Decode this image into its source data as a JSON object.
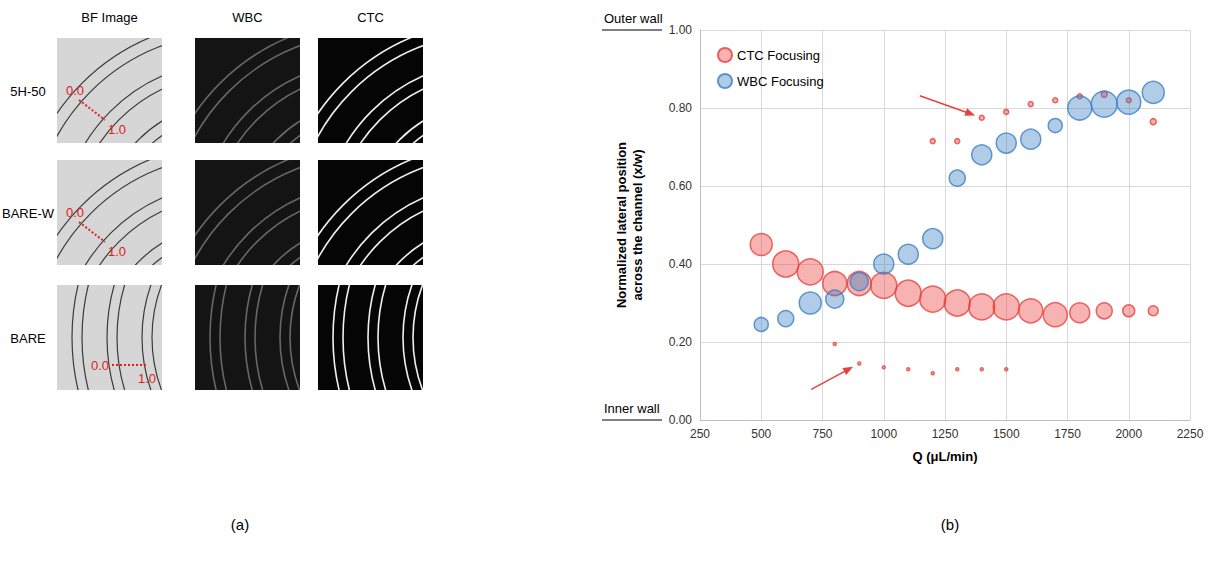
{
  "panel_a": {
    "label": "(a)",
    "columns": [
      "BF Image",
      "WBC",
      "CTC"
    ],
    "rows": [
      {
        "name": "5H-50",
        "scale_labels": [
          "0.0",
          "1.0"
        ]
      },
      {
        "name": "BARE-W",
        "scale_labels": [
          "0.0",
          "1.0"
        ]
      },
      {
        "name": "BARE",
        "scale_labels": [
          "0.0",
          "1.0"
        ]
      }
    ]
  },
  "chart_data": {
    "type": "scatter",
    "label": "(b)",
    "x_label": "Q (μL/min)",
    "y_label": "Normalized lateral position across the channel (x/w)",
    "annotations": [
      "Outer wall",
      "Inner wall"
    ],
    "xlim": [
      250,
      2250
    ],
    "xticks": [
      250,
      500,
      750,
      1000,
      1250,
      1500,
      1750,
      2000,
      2250
    ],
    "ylim": [
      0,
      1
    ],
    "yticks": [
      {
        "value": 0,
        "label": "0.00"
      },
      {
        "value": 0.2,
        "label": "0.20"
      },
      {
        "value": 0.4,
        "label": "0.40"
      },
      {
        "value": 0.6,
        "label": "0.60"
      },
      {
        "value": 0.8,
        "label": "0.80"
      },
      {
        "value": 1,
        "label": "1.00"
      }
    ],
    "grid": true,
    "legend": "upper left",
    "marker": "circle",
    "series": [
      {
        "name": "CTC Focusing",
        "color": "#e8413f",
        "x": [
          500,
          600,
          700,
          800,
          900,
          1000,
          1100,
          1200,
          1300,
          1400,
          1500,
          1600,
          1700,
          1800,
          1900,
          2000,
          2100,
          1200,
          1300,
          1400,
          1500,
          1600,
          1700,
          1800,
          1900,
          2000,
          2100,
          800,
          900,
          1000,
          1100,
          1200,
          1300,
          1400,
          1500
        ],
        "values": [
          0.45,
          0.4,
          0.38,
          0.35,
          0.35,
          0.345,
          0.325,
          0.31,
          0.3,
          0.29,
          0.29,
          0.28,
          0.27,
          0.275,
          0.28,
          0.28,
          0.28,
          0.715,
          0.715,
          0.775,
          0.79,
          0.81,
          0.82,
          0.83,
          0.835,
          0.82,
          0.765,
          0.195,
          0.145,
          0.135,
          0.13,
          0.12,
          0.13,
          0.13,
          0.13
        ],
        "sizes": [
          22,
          26,
          26,
          24,
          24,
          26,
          26,
          26,
          26,
          26,
          26,
          24,
          24,
          20,
          16,
          12,
          10,
          5,
          5,
          5,
          5,
          5,
          5,
          5,
          6,
          5,
          6,
          3,
          3,
          3,
          3,
          3,
          3,
          3,
          3
        ]
      },
      {
        "name": "WBC Focusing",
        "color": "#3d7fc4",
        "x": [
          500,
          600,
          700,
          800,
          900,
          1000,
          1100,
          1200,
          1300,
          1400,
          1500,
          1600,
          1700,
          1800,
          1900,
          2000,
          2100
        ],
        "values": [
          0.245,
          0.26,
          0.3,
          0.31,
          0.355,
          0.4,
          0.425,
          0.465,
          0.62,
          0.68,
          0.71,
          0.72,
          0.755,
          0.8,
          0.81,
          0.815,
          0.84
        ],
        "sizes": [
          14,
          16,
          22,
          18,
          18,
          20,
          20,
          20,
          16,
          20,
          20,
          20,
          14,
          24,
          26,
          24,
          22
        ]
      }
    ]
  }
}
